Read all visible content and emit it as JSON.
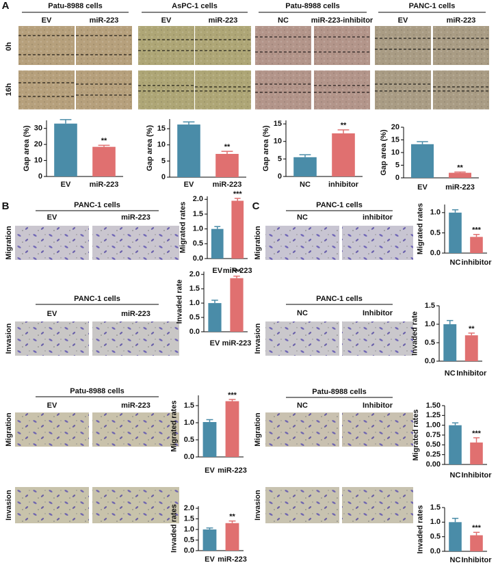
{
  "panels": {
    "A": {
      "letter": "A",
      "rows": [
        "0h",
        "16h"
      ],
      "groups": [
        {
          "title": "Patu-8988 cells",
          "columns": [
            "EV",
            "miR-223"
          ]
        },
        {
          "title": "AsPC-1 cells",
          "columns": [
            "EV",
            "miR-223"
          ]
        },
        {
          "title": "Patu-8988 cells",
          "columns": [
            "NC",
            "miR-223-inhibitor"
          ]
        },
        {
          "title": "PANC-1 cells",
          "columns": [
            "EV",
            "miR-223"
          ]
        }
      ]
    },
    "B": {
      "letter": "B",
      "blocks": [
        {
          "title": "PANC-1 cells",
          "columns": [
            "EV",
            "miR-223"
          ],
          "row": "Migration"
        },
        {
          "title": "PANC-1 cells",
          "columns": [
            "EV",
            "miR-223"
          ],
          "row": "Invasion"
        },
        {
          "title": "Patu-8988 cells",
          "columns": [
            "EV",
            "miR-223"
          ],
          "row": "Migration"
        },
        {
          "row": "Invasion"
        }
      ]
    },
    "C": {
      "letter": "C",
      "blocks": [
        {
          "title": "PANC-1 cells",
          "columns": [
            "NC",
            "inhibitor"
          ],
          "row": "Migration"
        },
        {
          "title": "PANC-1 cells",
          "columns": [
            "NC",
            "Inhibitor"
          ],
          "row": "Invasion"
        },
        {
          "title": "Patu-8988 cells",
          "columns": [
            "NC",
            "Inhibitor"
          ],
          "row": "Migration"
        },
        {
          "row": "Invasion"
        }
      ]
    }
  },
  "chart_data": [
    {
      "type": "bar",
      "ylabel": "Gap area (%)",
      "categories": [
        "EV",
        "miR-223"
      ],
      "values": [
        33,
        18.5
      ],
      "errors": [
        2.5,
        1
      ],
      "colors": [
        "#4a8ca8",
        "#e07070"
      ],
      "annotation": "**",
      "ylim": [
        0,
        35
      ],
      "yticks": [
        0,
        10,
        20,
        30
      ]
    },
    {
      "type": "bar",
      "ylabel": "Gap area (%)",
      "categories": [
        "EV",
        "miR-223"
      ],
      "values": [
        16.3,
        7.2
      ],
      "errors": [
        0.8,
        0.8
      ],
      "colors": [
        "#4a8ca8",
        "#e07070"
      ],
      "annotation": "**",
      "ylim": [
        0,
        18
      ],
      "yticks": [
        0,
        5,
        10,
        15
      ]
    },
    {
      "type": "bar",
      "ylabel": "Gap area (%)",
      "categories": [
        "NC",
        "inhibitor"
      ],
      "values": [
        5.5,
        12.3
      ],
      "errors": [
        0.7,
        1
      ],
      "colors": [
        "#4a8ca8",
        "#e07070"
      ],
      "annotation": "**",
      "ylim": [
        0,
        16
      ],
      "yticks": [
        0,
        5,
        10,
        15
      ]
    },
    {
      "type": "bar",
      "ylabel": "Gap area (%)",
      "categories": [
        "EV",
        "miR-223"
      ],
      "values": [
        13.3,
        2
      ],
      "errors": [
        1,
        0.3
      ],
      "colors": [
        "#4a8ca8",
        "#e07070"
      ],
      "annotation": "**",
      "ylim": [
        0,
        20
      ],
      "yticks": [
        0,
        5,
        10,
        15,
        20
      ]
    },
    {
      "type": "bar",
      "ylabel": "Migrated rates",
      "categories": [
        "EV",
        "miR-223"
      ],
      "values": [
        1.0,
        1.95
      ],
      "errors": [
        0.08,
        0.08
      ],
      "colors": [
        "#4a8ca8",
        "#e07070"
      ],
      "annotation": "***",
      "ylim": [
        0,
        2.1
      ],
      "yticks": [
        {
          "value": 0,
          "label": "0.0"
        },
        0.5,
        {
          "value": 1,
          "label": "1.0"
        },
        1.5,
        {
          "value": 2,
          "label": "2.0"
        }
      ]
    },
    {
      "type": "bar",
      "ylabel": "Invaded rate",
      "categories": [
        "EV",
        "miR-223"
      ],
      "values": [
        1.0,
        1.87
      ],
      "errors": [
        0.1,
        0.07
      ],
      "colors": [
        "#4a8ca8",
        "#e07070"
      ],
      "annotation": "***",
      "ylim": [
        0,
        2.1
      ],
      "yticks": [
        {
          "value": 0,
          "label": "0.0"
        },
        0.5,
        {
          "value": 1,
          "label": "1.0"
        },
        1.5,
        {
          "value": 2,
          "label": "2.0"
        }
      ]
    },
    {
      "type": "bar",
      "ylabel": "Migrated rates",
      "categories": [
        "EV",
        "miR-223"
      ],
      "values": [
        1.02,
        1.63
      ],
      "errors": [
        0.07,
        0.05
      ],
      "colors": [
        "#4a8ca8",
        "#e07070"
      ],
      "annotation": "***",
      "ylim": [
        0,
        1.8
      ],
      "yticks": [
        {
          "value": 0,
          "label": "0.0"
        },
        0.5,
        {
          "value": 1,
          "label": "1.0"
        },
        1.5
      ]
    },
    {
      "type": "bar",
      "ylabel": "Invaded rates",
      "categories": [
        "EV",
        "miR-223"
      ],
      "values": [
        1.0,
        1.3
      ],
      "errors": [
        0.07,
        0.1
      ],
      "colors": [
        "#4a8ca8",
        "#e07070"
      ],
      "annotation": "**",
      "ylim": [
        0,
        2.1
      ],
      "yticks": [
        {
          "value": 0,
          "label": "0.0"
        },
        0.5,
        {
          "value": 1,
          "label": "1.0"
        },
        1.5,
        {
          "value": 2,
          "label": "2.0"
        }
      ]
    },
    {
      "type": "bar",
      "ylabel": "Migrated rates",
      "categories": [
        "NC",
        "inhibitor"
      ],
      "values": [
        1.0,
        0.4
      ],
      "errors": [
        0.07,
        0.06
      ],
      "colors": [
        "#4a8ca8",
        "#e07070"
      ],
      "annotation": "***",
      "ylim": [
        0,
        1.2
      ],
      "yticks": [
        {
          "value": 0,
          "label": "0.0"
        },
        0.5,
        {
          "value": 1,
          "label": "1.0"
        }
      ]
    },
    {
      "type": "bar",
      "ylabel": "Invaded rate",
      "categories": [
        "NC",
        "Inhibitor"
      ],
      "values": [
        1.0,
        0.7
      ],
      "errors": [
        0.1,
        0.06
      ],
      "colors": [
        "#4a8ca8",
        "#e07070"
      ],
      "annotation": "**",
      "ylim": [
        0,
        1.5
      ],
      "yticks": [
        {
          "value": 0,
          "label": "0.0"
        },
        0.5,
        {
          "value": 1,
          "label": "1.0"
        },
        1.5
      ]
    },
    {
      "type": "bar",
      "ylabel": "Migrated rates",
      "categories": [
        "NC",
        "Inhibitor"
      ],
      "values": [
        1.0,
        0.56
      ],
      "errors": [
        0.06,
        0.12
      ],
      "colors": [
        "#4a8ca8",
        "#e07070"
      ],
      "annotation": "***",
      "ylim": [
        0,
        1.5
      ],
      "yticks": [
        {
          "value": 0,
          "label": "0.00"
        },
        0.25,
        {
          "value": 0.5,
          "label": "0.50"
        },
        0.75,
        {
          "value": 1,
          "label": "1.00"
        },
        1.25,
        {
          "value": 1.5,
          "label": "1.50"
        }
      ]
    },
    {
      "type": "bar",
      "ylabel": "Invaded rates",
      "categories": [
        "NC",
        "Inhibitor"
      ],
      "values": [
        1.0,
        0.55
      ],
      "errors": [
        0.13,
        0.1
      ],
      "colors": [
        "#4a8ca8",
        "#e07070"
      ],
      "annotation": "***",
      "ylim": [
        0,
        1.5
      ],
      "yticks": [
        {
          "value": 0,
          "label": "0.0"
        },
        0.5,
        {
          "value": 1,
          "label": "1.0"
        },
        1.5
      ]
    }
  ]
}
